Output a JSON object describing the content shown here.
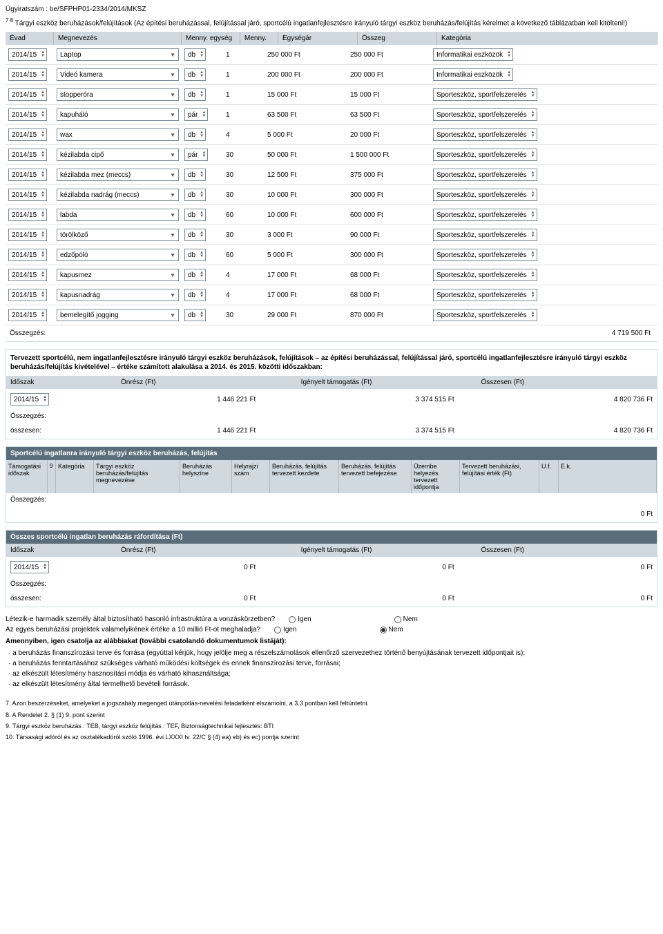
{
  "docNumber": "Ügyiratszám : be/SFPHP01-2334/2014/MKSZ",
  "intro": {
    "sup": "7 8",
    "text": " Tárgyi eszköz beruházások/felújítások (Az építési beruházással, felújítással járó, sportcélú ingatlanfejlesztésre irányuló tárgyi eszköz beruházás/felújítás kérelmet a következő táblázatban kell kitölteni!)"
  },
  "mainHeader": {
    "evad": "Évad",
    "name": "Megnevezés",
    "unit": "Menny. egység",
    "qty": "Menny.",
    "price": "Egységár",
    "sum": "Összeg",
    "cat": "Kategória"
  },
  "rows": [
    {
      "evad": "2014/15",
      "name": "Laptop",
      "unit": "db",
      "qty": "1",
      "price": "250 000 Ft",
      "sum": "250 000 Ft",
      "cat": "Informatikai eszközök"
    },
    {
      "evad": "2014/15",
      "name": "Videó kamera",
      "unit": "db",
      "qty": "1",
      "price": "200 000 Ft",
      "sum": "200 000 Ft",
      "cat": "Informatikai eszközök"
    },
    {
      "evad": "2014/15",
      "name": "stopperóra",
      "unit": "db",
      "qty": "1",
      "price": "15 000 Ft",
      "sum": "15 000 Ft",
      "cat": "Sporteszköz, sportfelszerelés"
    },
    {
      "evad": "2014/15",
      "name": "kapuháló",
      "unit": "pár",
      "qty": "1",
      "price": "63 500 Ft",
      "sum": "63 500 Ft",
      "cat": "Sporteszköz, sportfelszerelés"
    },
    {
      "evad": "2014/15",
      "name": "wax",
      "unit": "db",
      "qty": "4",
      "price": "5 000 Ft",
      "sum": "20 000 Ft",
      "cat": "Sporteszköz, sportfelszerelés"
    },
    {
      "evad": "2014/15",
      "name": "kézilabda cipő",
      "unit": "pár",
      "qty": "30",
      "price": "50 000 Ft",
      "sum": "1 500 000 Ft",
      "cat": "Sporteszköz, sportfelszerelés"
    },
    {
      "evad": "2014/15",
      "name": "kézilabda mez (meccs)",
      "unit": "db",
      "qty": "30",
      "price": "12 500 Ft",
      "sum": "375 000 Ft",
      "cat": "Sporteszköz, sportfelszerelés"
    },
    {
      "evad": "2014/15",
      "name": "kézilabda nadrág (meccs)",
      "unit": "db",
      "qty": "30",
      "price": "10 000 Ft",
      "sum": "300 000 Ft",
      "cat": "Sporteszköz, sportfelszerelés"
    },
    {
      "evad": "2014/15",
      "name": "labda",
      "unit": "db",
      "qty": "60",
      "price": "10 000 Ft",
      "sum": "600 000 Ft",
      "cat": "Sporteszköz, sportfelszerelés"
    },
    {
      "evad": "2014/15",
      "name": "törölköző",
      "unit": "db",
      "qty": "30",
      "price": "3 000 Ft",
      "sum": "90 000 Ft",
      "cat": "Sporteszköz, sportfelszerelés"
    },
    {
      "evad": "2014/15",
      "name": "edzőpóló",
      "unit": "db",
      "qty": "60",
      "price": "5 000 Ft",
      "sum": "300 000 Ft",
      "cat": "Sporteszköz, sportfelszerelés"
    },
    {
      "evad": "2014/15",
      "name": "kapusmez",
      "unit": "db",
      "qty": "4",
      "price": "17 000 Ft",
      "sum": "68 000 Ft",
      "cat": "Sporteszköz, sportfelszerelés"
    },
    {
      "evad": "2014/15",
      "name": "kapusnadrág",
      "unit": "db",
      "qty": "4",
      "price": "17 000 Ft",
      "sum": "68 000 Ft",
      "cat": "Sporteszköz, sportfelszerelés"
    },
    {
      "evad": "2014/15",
      "name": "bemelegítő jogging",
      "unit": "db",
      "qty": "30",
      "price": "29 000 Ft",
      "sum": "870 000 Ft",
      "cat": "Sporteszköz, sportfelszerelés"
    }
  ],
  "summary1": {
    "label": "Összegzés:",
    "amount": "4 719 500 Ft"
  },
  "panel1": {
    "text": "Tervezett sportcélú, nem ingatlanfejlesztésre irányuló tárgyi eszköz beruházások, felújítások – az építési beruházással, felújítással járó, sportcélú ingatlanfejlesztésre irányuló tárgyi eszköz beruházás/felújítás kivételével – értéke számított alakulása a 2014. és 2015. közötti időszakban:",
    "header": {
      "period": "Időszak",
      "own": "Önrész (Ft)",
      "support": "Igényelt támogatás (Ft)",
      "total": "Összesen (Ft)"
    },
    "row": {
      "period": "2014/15",
      "own": "1 446 221 Ft",
      "support": "3 374 515 Ft",
      "total": "4 820 736 Ft"
    },
    "sumLabel": "Összegzés:",
    "sumRow": {
      "period": "összesen:",
      "own": "1 446 221 Ft",
      "support": "3 374 515 Ft",
      "total": "4 820 736 Ft"
    }
  },
  "panel2": {
    "title": "Sportcélú ingatlanra irányuló tárgyi eszköz beruházás, felújítás",
    "header": {
      "c1": "Támogatási időszak",
      "c1sup": "9",
      "c2": "Kategória",
      "c3": "Tárgyi eszköz beruházás/felújítás megnevezése",
      "c4": "Beruházás helyszíne",
      "c5": "Helyrajzi szám",
      "c6": "Beruházás, felújítás tervezett kezdete",
      "c7": "Beruházás, felújítás tervezett befejezése",
      "c8": "Üzembe helyezés tervezett időpontja",
      "c9": "Tervezett beruházási, felújítási érték (Ft)",
      "c10": "U.f.",
      "c11": "E.k."
    },
    "sumLabel": "Összegzés:",
    "sumAmount": "0 Ft"
  },
  "panel3": {
    "title": "Összes sportcélú ingatlan beruházás ráfordítása (Ft)",
    "header": {
      "period": "Időszak",
      "own": "Önrész (Ft)",
      "support": "Igényelt támogatás (Ft)",
      "total": "Összesen (Ft)"
    },
    "row": {
      "period": "2014/15",
      "own": "0 Ft",
      "support": "0 Ft",
      "total": "0 Ft"
    },
    "sumLabel": "Összegzés:",
    "sumRow": {
      "period": "összesen:",
      "own": "0 Ft",
      "support": "0 Ft",
      "total": "0 Ft"
    }
  },
  "radios": {
    "q1": "Létezik-e harmadik személy által biztosítható hasonló infrastruktúra a vonzáskörzetben?",
    "q2": "Az egyes beruházási projektek valamelyikének értéke a 10 millió Ft-ot meghaladja?",
    "yes": "Igen",
    "no": "Nem"
  },
  "amend": {
    "title": "Amennyiben, igen csatolja az alábbiakat (további csatolandó dokumentumok listáját):",
    "items": [
      "· a beruházás finanszírozási terve és forrása (egyúttal kérjük, hogy jelölje meg a részelszámolások ellenőrző szervezethez történő benyújtásának tervezett időpontjait is);",
      "· a beruházás fenntartásához szükséges várható működési költségek és ennek finanszírozási terve, forrásai;",
      "· az elkészült létesítmény hasznosítási módja és várható kihasználtsága;",
      "· az elkészült létesítmény által termelhető bevételi források."
    ]
  },
  "footnotes": [
    "7. Azon beszerzéseket, amelyeket a jogszabály megenged utánpótlás-nevelési feladatként elszámolni, a 3.3 pontban kell feltüntetni.",
    "8. A Rendelet 2. § (1) 9. pont szerint",
    "9. Tárgyi eszköz beruházás : TEB, tárgyi eszköz felújítás : TEF, Biztonságtechnikai fejlesztés: BTI",
    "10. Társasági adóról és az osztalékadóról szóló 1996. évi LXXXI tv. 22/C § (4) ea) eb) és ec) pontja szerint"
  ]
}
